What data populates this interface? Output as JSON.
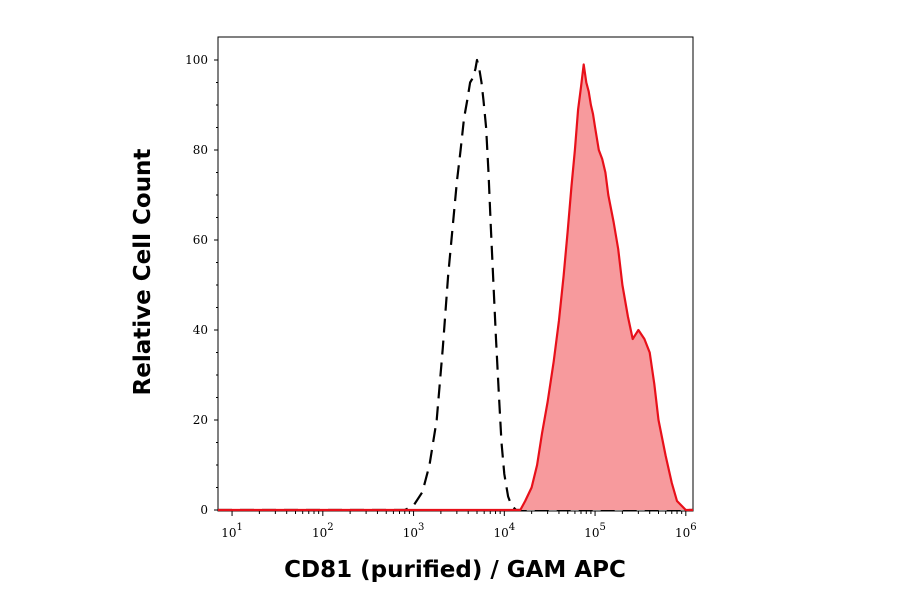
{
  "chart_data": {
    "type": "line",
    "title": "",
    "xlabel": "CD81 (purified) / GAM APC",
    "ylabel": "Relative Cell Count",
    "x_scale": "log",
    "xlim": [
      7,
      1200000
    ],
    "ylim": [
      0,
      100
    ],
    "x_ticks": [
      {
        "value": 10,
        "base": "10",
        "exp": "1"
      },
      {
        "value": 100,
        "base": "10",
        "exp": "2"
      },
      {
        "value": 1000,
        "base": "10",
        "exp": "3"
      },
      {
        "value": 10000,
        "base": "10",
        "exp": "4"
      },
      {
        "value": 100000,
        "base": "10",
        "exp": "5"
      },
      {
        "value": 1000000,
        "base": "10",
        "exp": "6"
      }
    ],
    "y_ticks": [
      {
        "value": 0,
        "label": "0"
      },
      {
        "value": 20,
        "label": "20"
      },
      {
        "value": 40,
        "label": "40"
      },
      {
        "value": 60,
        "label": "60"
      },
      {
        "value": 80,
        "label": "80"
      },
      {
        "value": 100,
        "label": "100"
      }
    ],
    "grid": false,
    "colors": {
      "stained": "#e8101a",
      "stained_fill": "#f79a9d",
      "control": "#000000"
    },
    "series": [
      {
        "style": "dashed-black",
        "x": [
          7,
          800,
          1000,
          1250,
          1500,
          1800,
          2100,
          2400,
          2700,
          3000,
          3300,
          3600,
          3900,
          4200,
          4500,
          4800,
          5000,
          5300,
          5600,
          5900,
          6300,
          6700,
          7100,
          7600,
          8100,
          8700,
          9300,
          10000,
          11000,
          12000,
          13500,
          20000,
          50000,
          100000,
          300000,
          1200000
        ],
        "y": [
          0,
          0,
          1,
          4,
          10,
          20,
          36,
          52,
          63,
          73,
          80,
          87,
          91,
          95,
          96,
          98,
          100,
          98,
          95,
          91,
          85,
          75,
          63,
          50,
          38,
          26,
          15,
          8,
          3,
          1,
          0,
          0,
          0,
          0,
          0,
          0
        ]
      },
      {
        "style": "filled-red",
        "x": [
          7,
          15000,
          17000,
          20000,
          23000,
          26000,
          30000,
          35000,
          40000,
          45000,
          50000,
          55000,
          60000,
          65000,
          70000,
          75000,
          80000,
          85000,
          90000,
          95000,
          100000,
          110000,
          120000,
          130000,
          140000,
          160000,
          180000,
          200000,
          230000,
          260000,
          300000,
          350000,
          400000,
          450000,
          500000,
          600000,
          700000,
          800000,
          1000000,
          1200000
        ],
        "y": [
          0,
          0,
          2,
          5,
          10,
          17,
          24,
          33,
          42,
          52,
          62,
          72,
          80,
          89,
          94,
          99,
          95,
          93,
          90,
          88,
          85,
          80,
          78,
          75,
          70,
          64,
          58,
          50,
          43,
          38,
          40,
          38,
          35,
          28,
          20,
          12,
          6,
          2,
          0,
          0
        ]
      }
    ]
  }
}
